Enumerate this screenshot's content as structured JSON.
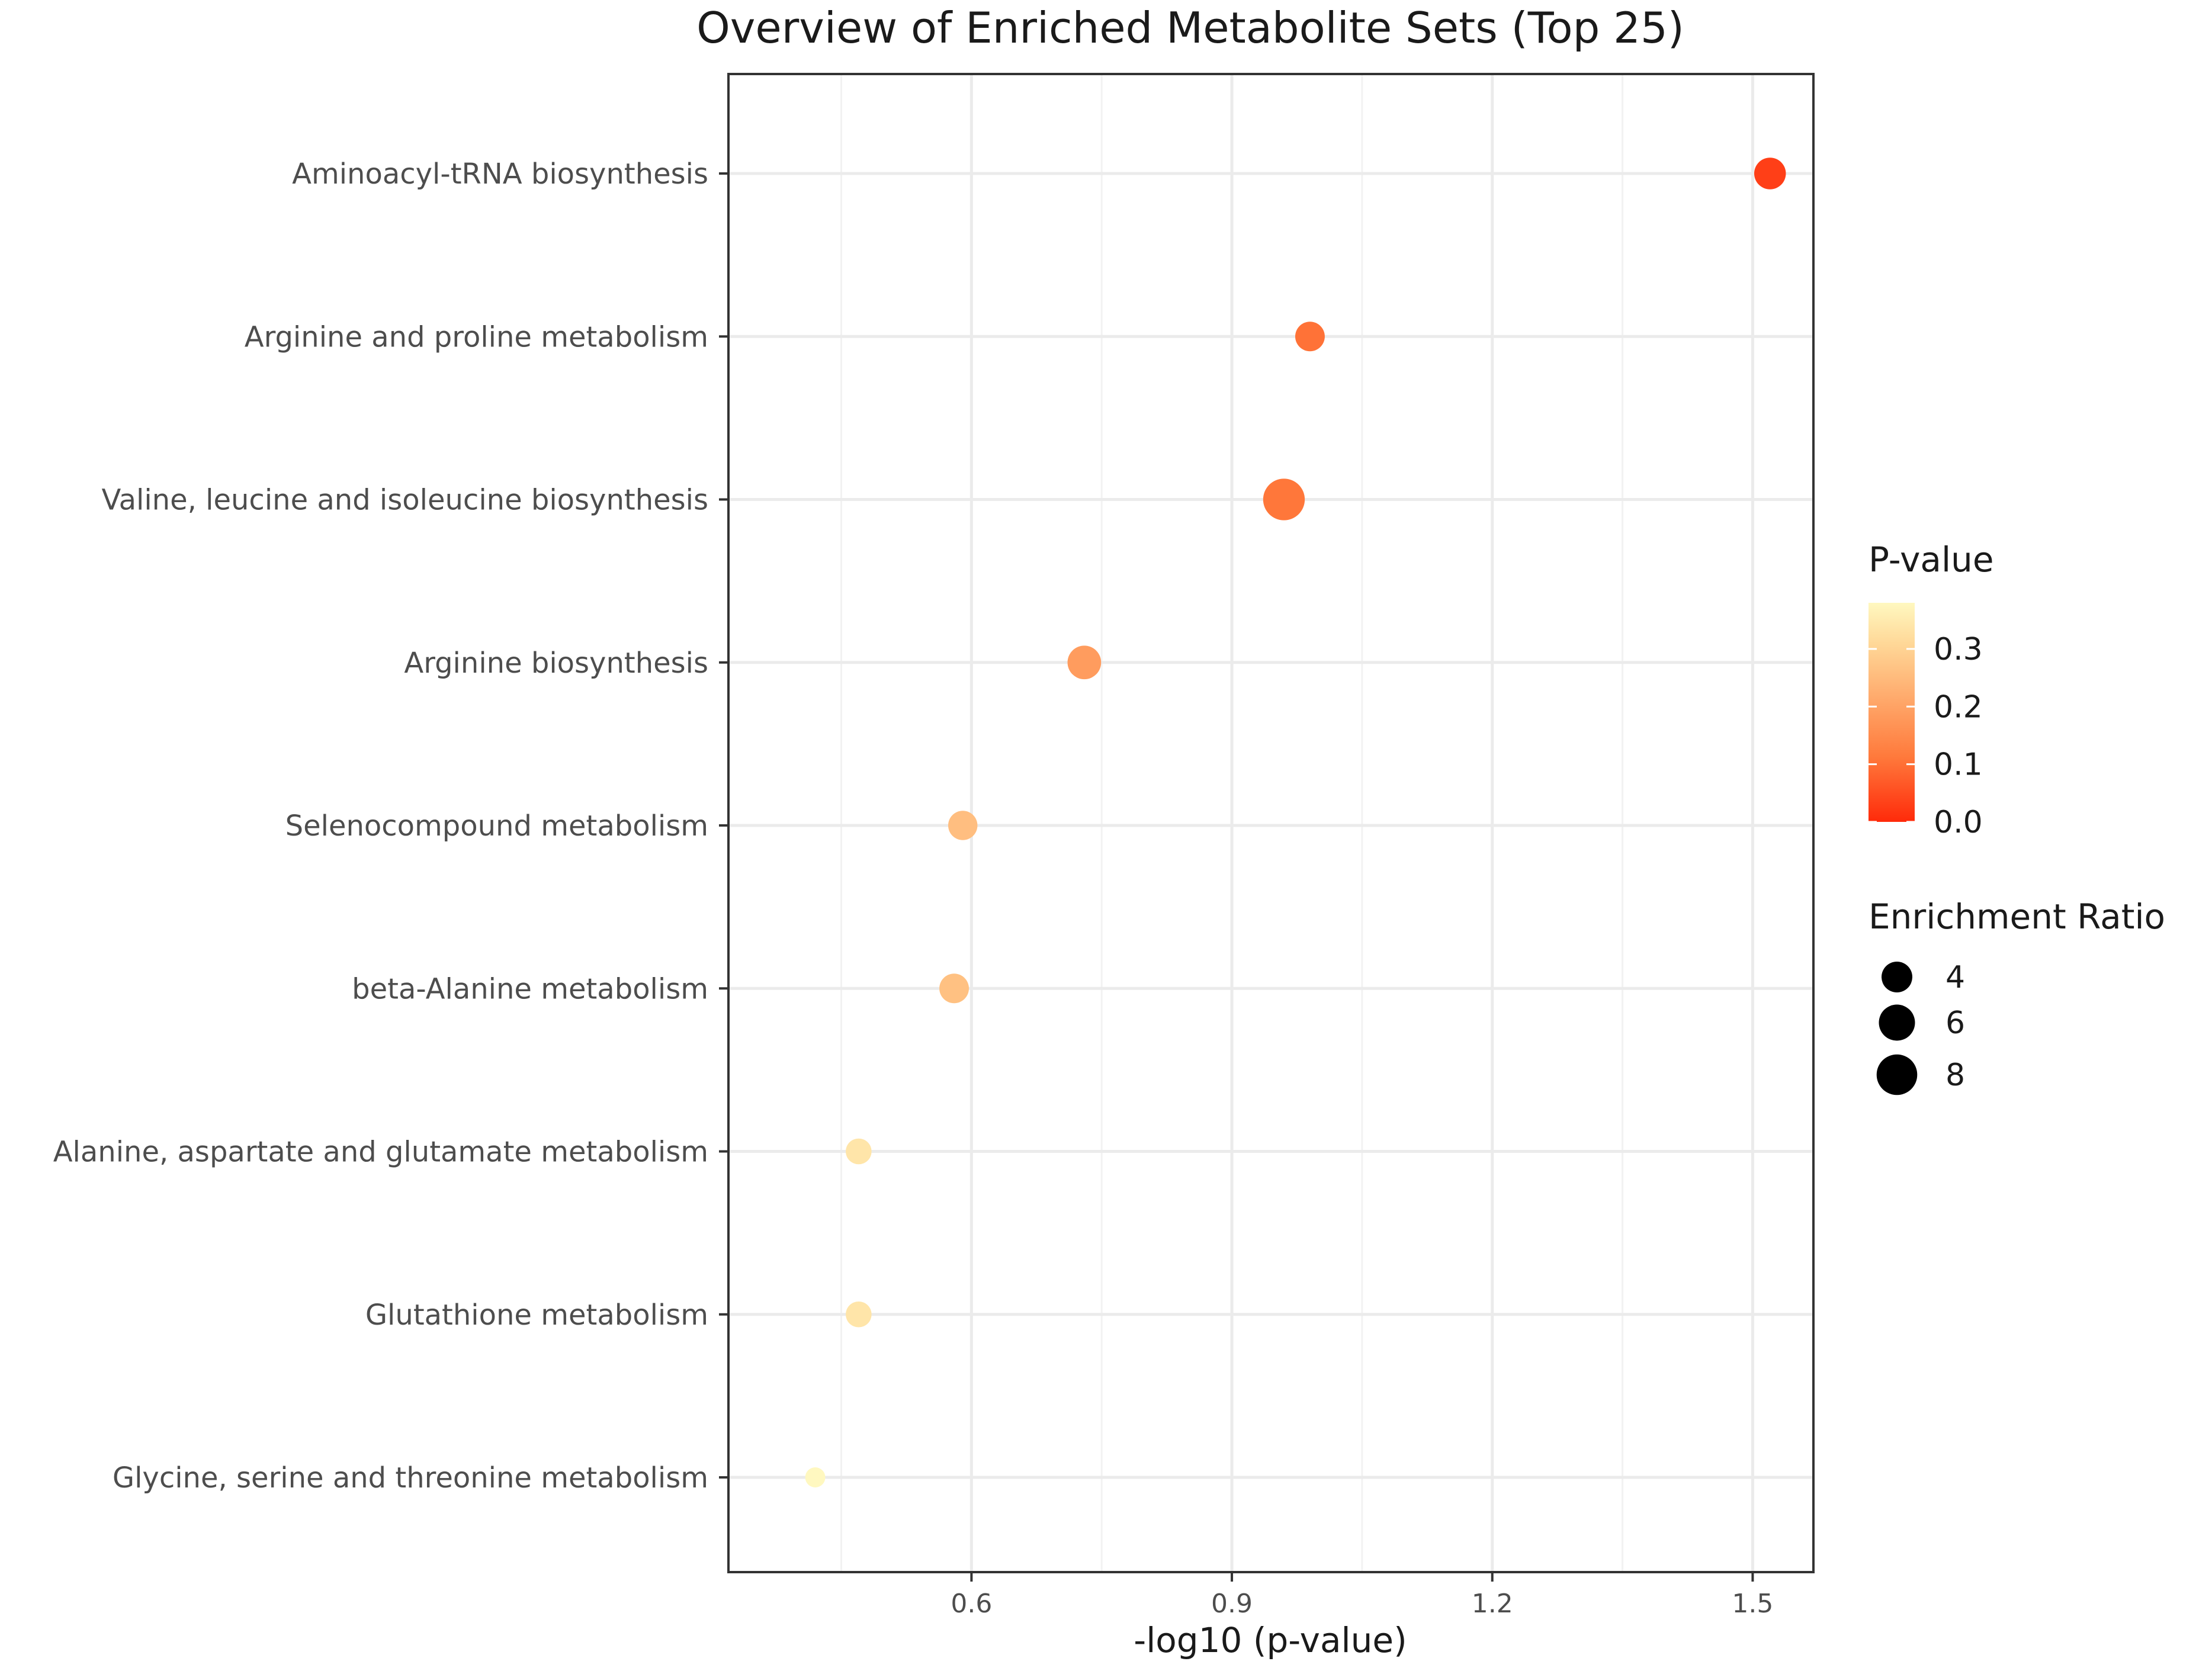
{
  "chart_data": {
    "type": "scatter",
    "title": "Overview of Enriched Metabolite Sets (Top 25)",
    "xlabel": "-log10 (p-value)",
    "ylabel": "",
    "xlim": [
      0.32,
      1.57
    ],
    "xticks": [
      0.6,
      0.9,
      1.2,
      1.5
    ],
    "xtick_labels": [
      "0.6",
      "0.9",
      "1.2",
      "1.5"
    ],
    "grid": true,
    "legend_position": "right",
    "colors": {
      "low_p": "#ff2a0a",
      "high_p": "#fff8c0"
    },
    "color_legend": {
      "title": "P-value",
      "range": [
        0.0,
        0.38
      ],
      "ticks": [
        0.0,
        0.1,
        0.2,
        0.3
      ],
      "tick_labels": [
        "0.0",
        "0.1",
        "0.2",
        "0.3"
      ]
    },
    "size_legend": {
      "title": "Enrichment Ratio",
      "values": [
        4,
        6,
        8
      ],
      "labels": [
        "4",
        "6",
        "8"
      ]
    },
    "points": [
      {
        "label": "Aminoacyl-tRNA biosynthesis",
        "x": 1.52,
        "p_value": 0.03,
        "enrichment_ratio": 4.3
      },
      {
        "label": "Arginine and proline metabolism",
        "x": 0.99,
        "p_value": 0.102,
        "enrichment_ratio": 3.6
      },
      {
        "label": "Valine, leucine and isoleucine biosynthesis",
        "x": 0.96,
        "p_value": 0.11,
        "enrichment_ratio": 8.5
      },
      {
        "label": "Arginine biosynthesis",
        "x": 0.73,
        "p_value": 0.186,
        "enrichment_ratio": 5.0
      },
      {
        "label": "Selenocompound metabolism",
        "x": 0.59,
        "p_value": 0.257,
        "enrichment_ratio": 3.5
      },
      {
        "label": "beta-Alanine metabolism",
        "x": 0.58,
        "p_value": 0.263,
        "enrichment_ratio": 3.6
      },
      {
        "label": "Alanine, aspartate and glutamate metabolism",
        "x": 0.47,
        "p_value": 0.339,
        "enrichment_ratio": 2.5
      },
      {
        "label": "Glutathione metabolism",
        "x": 0.47,
        "p_value": 0.339,
        "enrichment_ratio": 2.5
      },
      {
        "label": "Glycine, serine and threonine metabolism",
        "x": 0.42,
        "p_value": 0.38,
        "enrichment_ratio": 1.2
      }
    ]
  }
}
